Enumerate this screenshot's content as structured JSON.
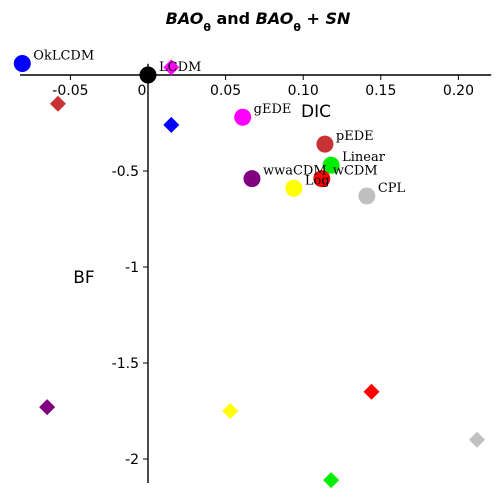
{
  "chart_data": {
    "type": "scatter",
    "title": {
      "part1": "BAO",
      "sub1": "θ",
      "part2": " and ",
      "part3": "BAO",
      "sub2": "θ",
      "part4": " + SN"
    },
    "xlabel": "DIC",
    "ylabel": "BF",
    "xlim": [
      -0.085,
      0.225
    ],
    "ylim": [
      -2.12,
      0.1
    ],
    "x_ticks": [
      {
        "value": -0.05,
        "label": "-0.05"
      },
      {
        "value": 0,
        "label": "0"
      },
      {
        "value": 0.05,
        "label": "0.05"
      },
      {
        "value": 0.1,
        "label": "0.10"
      },
      {
        "value": 0.15,
        "label": "0.15"
      },
      {
        "value": 0.2,
        "label": "0.20"
      }
    ],
    "y_ticks": [
      {
        "value": -0.5,
        "label": "-0.5"
      },
      {
        "value": -1,
        "label": "-1"
      },
      {
        "value": -1.5,
        "label": "-1.5"
      },
      {
        "value": -2,
        "label": "-2"
      }
    ],
    "series": [
      {
        "name": "BAOθ",
        "marker": "circle",
        "points": [
          {
            "label": "OkLCDM",
            "x": -0.081,
            "y": 0.06,
            "color": "#0000ff"
          },
          {
            "label": "LCDM",
            "x": 0.0,
            "y": 0.0,
            "color": "#000000"
          },
          {
            "label": "gEDE",
            "x": 0.061,
            "y": -0.22,
            "color": "#ff00ff"
          },
          {
            "label": "pEDE",
            "x": 0.114,
            "y": -0.36,
            "color": "#c83232"
          },
          {
            "label": "Linear",
            "x": 0.118,
            "y": -0.47,
            "color": "#00ee00"
          },
          {
            "label": "wwaCDM",
            "x": 0.067,
            "y": -0.54,
            "color": "#800080"
          },
          {
            "label": "wCDM",
            "x": 0.112,
            "y": -0.54,
            "color": "#ff0000"
          },
          {
            "label": "Log",
            "x": 0.094,
            "y": -0.59,
            "color": "#ffff00"
          },
          {
            "label": "CPL",
            "x": 0.141,
            "y": -0.63,
            "color": "#c0c0c0"
          }
        ]
      },
      {
        "name": "BAOθ + SN",
        "marker": "diamond",
        "points": [
          {
            "x": -0.058,
            "y": -0.15,
            "color": "#c83232"
          },
          {
            "x": 0.015,
            "y": 0.04,
            "color": "#ff00ff"
          },
          {
            "x": 0.015,
            "y": -0.26,
            "color": "#0000ff"
          },
          {
            "x": -0.065,
            "y": -1.73,
            "color": "#800080"
          },
          {
            "x": 0.053,
            "y": -1.75,
            "color": "#ffff00"
          },
          {
            "x": 0.144,
            "y": -1.65,
            "color": "#ff0000"
          },
          {
            "x": 0.118,
            "y": -2.11,
            "color": "#00ee00"
          },
          {
            "x": 0.212,
            "y": -1.9,
            "color": "#c0c0c0"
          }
        ]
      }
    ]
  }
}
